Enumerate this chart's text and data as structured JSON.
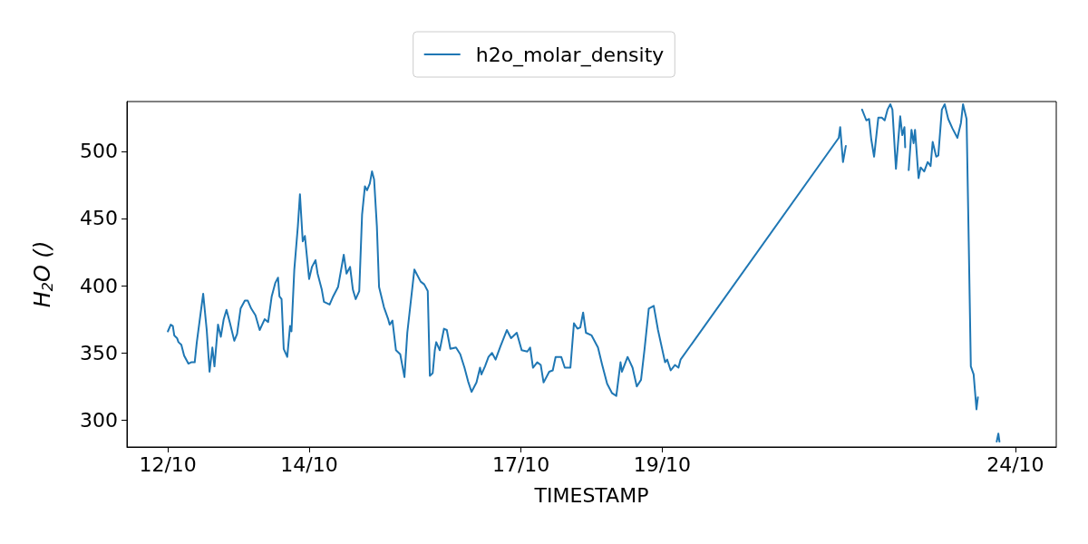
{
  "chart_data": {
    "type": "line",
    "xlabel": "TIMESTAMP",
    "ylabel": "H$_{2}$O ()",
    "legend": "top",
    "grid": false,
    "xlim": [
      "--10-11T10:05",
      "--10-24T13:55"
    ],
    "ylim": [
      280,
      537
    ],
    "xticks": [
      {
        "value": "--10-12",
        "label": "12/10"
      },
      {
        "value": "--10-14",
        "label": "14/10"
      },
      {
        "value": "--10-17",
        "label": "17/10"
      },
      {
        "value": "--10-19",
        "label": "19/10"
      },
      {
        "value": "--10-24",
        "label": "24/10"
      }
    ],
    "yticks": [
      300,
      350,
      400,
      450,
      500
    ],
    "series": [
      {
        "name": "h2o_molar_density",
        "color": "#1f77b4",
        "x": [
          "--10-12T00:00",
          "--10-12T00:58",
          "--10-12T01:41",
          "--10-12T02:10",
          "--10-12T03:07",
          "--10-12T03:36",
          "--10-12T04:34",
          "--10-12T05:31",
          "--10-12T06:58",
          "--10-12T07:55",
          "--10-12T09:07",
          "--10-12T09:50",
          "--10-12T12:00",
          "--10-12T13:12",
          "--10-12T14:10",
          "--10-12T15:07",
          "--10-12T15:50",
          "--10-12T17:02",
          "--10-12T18:00",
          "--10-12T18:58",
          "--10-12T19:55",
          "--10-12T21:07",
          "--10-12T22:34",
          "--10-12T23:31",
          "--10-13T00:43",
          "--10-13T02:10",
          "--10-13T03:07",
          "--10-13T04:19",
          "--10-13T05:46",
          "--10-13T07:12",
          "--10-13T08:53",
          "--10-13T10:05",
          "--10-13T11:17",
          "--10-13T12:29",
          "--10-13T13:26",
          "--10-13T13:55",
          "--10-13T14:38",
          "--10-13T15:22",
          "--10-13T16:34",
          "--10-13T17:31",
          "--10-13T18:00",
          "--10-13T18:58",
          "--10-13T20:10",
          "--10-13T20:53",
          "--10-13T21:50",
          "--10-13T22:34",
          "--10-14T00:00",
          "--10-14T00:58",
          "--10-14T02:10",
          "--10-14T02:53",
          "--10-14T04:19",
          "--10-14T05:02",
          "--10-14T06:58",
          "--10-14T08:10",
          "--10-14T09:50",
          "--10-14T11:46",
          "--10-14T12:43",
          "--10-14T13:55",
          "--10-14T14:53",
          "--10-14T15:50",
          "--10-14T17:02",
          "--10-14T18:00",
          "--10-14T18:58",
          "--10-14T19:41",
          "--10-14T20:38",
          "--10-14T21:22",
          "--10-14T22:05",
          "--10-14T23:02",
          "--10-14T23:46",
          "--10-15T01:26",
          "--10-15T02:53",
          "--10-15T03:22",
          "--10-15T04:19",
          "--10-15T05:31",
          "--10-15T06:58",
          "--10-15T08:24",
          "--10-15T09:22",
          "--10-15T11:46",
          "--10-15T13:55",
          "--10-15T15:07",
          "--10-15T16:19",
          "--10-15T17:02",
          "--10-15T18:00",
          "--10-15T18:43",
          "--10-15T19:12",
          "--10-15T20:24",
          "--10-15T21:50",
          "--10-15T22:48",
          "--10-16T00:00",
          "--10-16T01:55",
          "--10-16T03:22",
          "--10-16T04:48",
          "--10-16T06:00",
          "--10-16T07:12",
          "--10-16T08:53",
          "--10-16T10:05",
          "--10-16T10:34",
          "--10-16T11:46",
          "--10-16T12:58",
          "--10-16T14:10",
          "--10-16T15:22",
          "--10-16T17:02",
          "--10-16T19:12",
          "--10-16T20:38",
          "--10-16T22:34",
          "--10-17T00:14",
          "--10-17T02:10",
          "--10-17T03:07",
          "--10-17T04:05",
          "--10-17T05:31",
          "--10-17T06:43",
          "--10-17T07:41",
          "--10-17T09:36",
          "--10-17T10:48",
          "--10-17T11:46",
          "--10-17T13:41",
          "--10-17T14:53",
          "--10-17T16:48",
          "--10-17T18:00",
          "--10-17T19:12",
          "--10-17T20:10",
          "--10-17T21:07",
          "--10-17T22:05",
          "--10-18T00:00",
          "--10-18T02:10",
          "--10-18T03:36",
          "--10-18T05:17",
          "--10-18T06:58",
          "--10-18T08:24",
          "--10-18T09:50",
          "--10-18T10:19",
          "--10-18T12:14",
          "--10-18T13:55",
          "--10-18T15:22",
          "--10-18T16:48",
          "--10-18T18:00",
          "--10-18T19:26",
          "--10-18T21:07",
          "--10-18T22:34",
          "--10-19T00:58",
          "--10-19T01:41",
          "--10-19T02:53",
          "--10-19T04:19",
          "--10-19T05:31",
          "--10-19T06:14",
          "--10-21T12:00",
          "--10-21T12:29",
          "--10-21T13:26",
          "--10-21T14:24",
          "--10-21T14:53",
          "--10-21T16:48",
          "--10-21T18:29",
          "--10-21T19:55",
          "--10-21T21:22",
          "--10-21T22:19",
          "--10-21T23:02",
          "--10-22T00:00",
          "--10-22T01:26",
          "--10-22T02:38",
          "--10-22T03:36",
          "--10-22T04:34",
          "--10-22T05:31",
          "--10-22T06:14",
          "--10-22T07:26",
          "--10-22T08:53",
          "--10-22T09:36",
          "--10-22T10:19",
          "--10-22T10:34",
          "--10-22T10:48",
          "--10-22T11:46",
          "--10-22T12:43",
          "--10-22T13:26",
          "--10-22T13:55",
          "--10-22T15:07",
          "--10-22T15:50",
          "--10-22T17:02",
          "--10-22T18:14",
          "--10-22T19:12",
          "--10-22T19:55",
          "--10-22T21:07",
          "--10-22T21:50",
          "--10-22T23:02",
          "--10-23T00:00",
          "--10-23T01:12",
          "--10-23T02:38",
          "--10-23T04:19",
          "--10-23T05:31",
          "--10-23T06:14",
          "--10-23T07:26",
          "--10-23T08:10",
          "--10-23T08:53",
          "--10-23T09:50",
          "--10-23T10:48",
          "--10-23T11:17",
          "--10-23T12:00",
          "--10-23T14:24",
          "--10-23T17:41",
          "--10-23T18:14",
          "--10-23T18:37"
        ],
        "values": [
          366,
          371,
          370,
          363,
          361,
          358,
          356,
          348,
          342,
          343,
          343,
          358,
          394,
          367,
          336,
          354,
          340,
          371,
          362,
          375,
          382,
          372,
          359,
          364,
          383,
          389,
          389,
          383,
          378,
          367,
          375,
          373,
          392,
          402,
          406,
          392,
          390,
          353,
          347,
          370,
          366,
          412,
          444,
          468,
          433,
          437,
          405,
          414,
          419,
          409,
          397,
          388,
          386,
          392,
          399,
          423,
          409,
          414,
          397,
          390,
          396,
          453,
          474,
          471,
          476,
          485,
          479,
          444,
          399,
          384,
          375,
          371,
          374,
          352,
          349,
          332,
          365,
          412,
          403,
          401,
          396,
          333,
          335,
          352,
          358,
          352,
          368,
          367,
          353,
          354,
          349,
          339,
          329,
          321,
          328,
          339,
          334,
          340,
          347,
          350,
          345,
          355,
          367,
          361,
          365,
          352,
          351,
          354,
          339,
          343,
          341,
          328,
          336,
          337,
          347,
          347,
          339,
          339,
          372,
          368,
          369,
          380,
          365,
          363,
          354,
          341,
          327,
          320,
          318,
          343,
          336,
          347,
          339,
          325,
          330,
          353,
          383,
          385,
          367,
          343,
          345,
          337,
          341,
          339,
          345,
          510,
          518,
          492,
          504,
          null,
          null,
          null,
          531,
          523,
          524,
          509,
          496,
          525,
          525,
          523,
          531,
          535,
          531,
          487,
          526,
          512,
          518,
          503,
          null,
          486,
          516,
          506,
          516,
          480,
          488,
          485,
          492,
          489,
          507,
          496,
          497,
          531,
          535,
          524,
          517,
          510,
          521,
          535,
          524,
          433,
          340,
          334,
          308,
          317,
          null,
          null,
          284,
          290,
          284
        ]
      }
    ]
  }
}
